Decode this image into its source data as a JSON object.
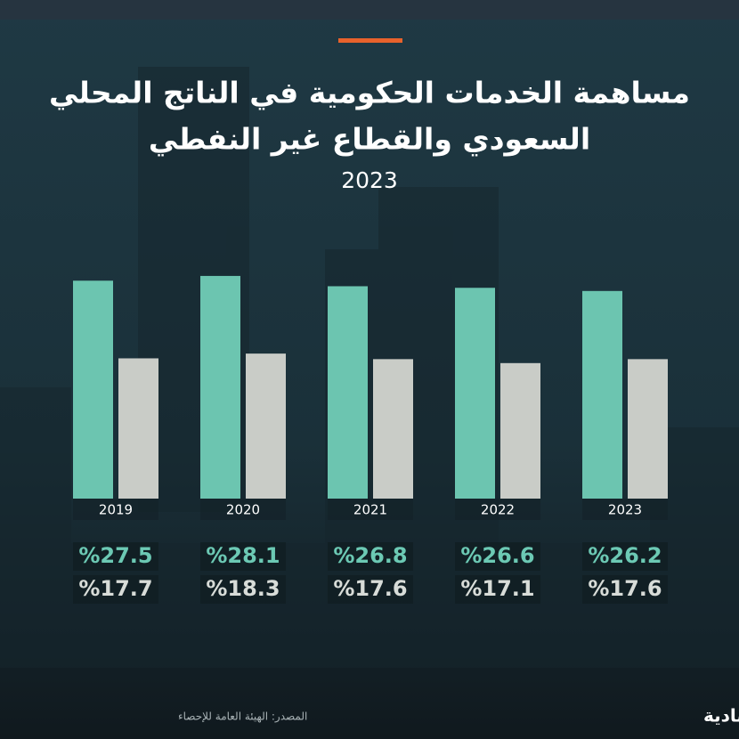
{
  "chart_data": {
    "type": "bar",
    "title": [
      "مساهمة الخدمات الحكومية في الناتج المحلي",
      "السعودي والقطاع غير النفطي"
    ],
    "subtitle": "2023",
    "categories": [
      "2019",
      "2020",
      "2021",
      "2022",
      "2023"
    ],
    "series": [
      {
        "color": "#6cc5b0",
        "values": [
          27.5,
          28.1,
          26.8,
          26.6,
          26.2
        ],
        "value_labels": [
          "%27.5",
          "%28.1",
          "%26.8",
          "%26.6",
          "%26.2"
        ]
      },
      {
        "color": "#c9ccc7",
        "values": [
          17.7,
          18.3,
          17.6,
          17.1,
          17.6
        ],
        "value_labels": [
          "%17.7",
          "%18.3",
          "%17.6",
          "%17.1",
          "%17.6"
        ]
      }
    ],
    "source": "المصدر: الهيئة العامة للإحصاء",
    "logo": "الاقتصادية"
  }
}
